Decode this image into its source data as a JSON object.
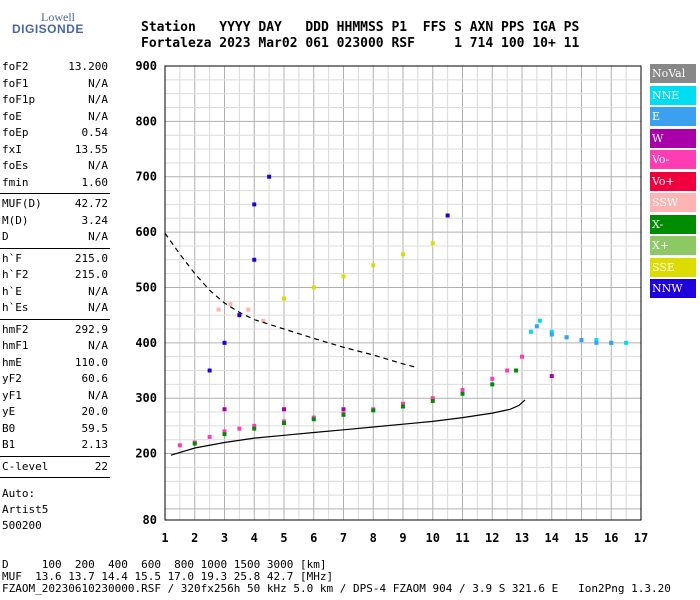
{
  "logo": {
    "line1": "Lowell",
    "line2": "DIGISONDE"
  },
  "header": {
    "line1": "Station   YYYY DAY   DDD HHMMSS P1  FFS S AXN PPS IGA PS",
    "line2": "Fortaleza 2023 Mar02 061 023000 RSF     1 714 100 10+ 11"
  },
  "params": {
    "group1": [
      [
        "foF2",
        "13.200"
      ],
      [
        "foF1",
        "N/A"
      ],
      [
        "foF1p",
        "N/A"
      ],
      [
        "foE",
        "N/A"
      ],
      [
        "foEp",
        "0.54"
      ],
      [
        "fxI",
        "13.55"
      ],
      [
        "foEs",
        "N/A"
      ],
      [
        "fmin",
        "1.60"
      ]
    ],
    "group2": [
      [
        "MUF(D)",
        "42.72"
      ],
      [
        "M(D)",
        "3.24"
      ],
      [
        "D",
        "N/A"
      ]
    ],
    "group3": [
      [
        "h`F",
        "215.0"
      ],
      [
        "h`F2",
        "215.0"
      ],
      [
        "h`E",
        "N/A"
      ],
      [
        "h`Es",
        "N/A"
      ]
    ],
    "group4": [
      [
        "hmF2",
        "292.9"
      ],
      [
        "hmF1",
        "N/A"
      ],
      [
        "hmE",
        "110.0"
      ],
      [
        "yF2",
        "60.6"
      ],
      [
        "yF1",
        "N/A"
      ],
      [
        "yE",
        "20.0"
      ],
      [
        "B0",
        "59.5"
      ],
      [
        "B1",
        "2.13"
      ]
    ],
    "group5": [
      [
        "C-level",
        "22"
      ]
    ],
    "auto_lines": [
      "Auto:",
      "Artist5",
      "500200"
    ]
  },
  "legend": [
    {
      "label": "NoVal",
      "color": "#888888"
    },
    {
      "label": "NNE",
      "color": "#00dcf0"
    },
    {
      "label": "E",
      "color": "#3ca0f0"
    },
    {
      "label": "W",
      "color": "#aa00aa"
    },
    {
      "label": "Vo-",
      "color": "#ff3cb4"
    },
    {
      "label": "Vo+",
      "color": "#f0003c"
    },
    {
      "label": "SSW",
      "color": "#ffb4b4"
    },
    {
      "label": "X-",
      "color": "#008c00"
    },
    {
      "label": "X+",
      "color": "#8cc864"
    },
    {
      "label": "SSE",
      "color": "#dcdc00"
    },
    {
      "label": "NNW",
      "color": "#1e00dc"
    }
  ],
  "footer": {
    "line1": "D     100  200  400  600  800 1000 1500 3000 [km]",
    "line2": "MUF  13.6 13.7 14.4 15.5 17.0 19.3 25.8 42.7 [MHz]",
    "line3": "FZAOM_20230610230000.RSF / 320fx256h 50 kHz 5.0 km / DPS-4 FZAOM 904 / 3.9 S 321.6 E   Ion2Png 1.3.20"
  },
  "chart_data": {
    "type": "scatter",
    "xlim": [
      1,
      17
    ],
    "ylim": [
      80,
      900
    ],
    "xticks": [
      1,
      2,
      3,
      4,
      5,
      6,
      7,
      8,
      9,
      10,
      11,
      12,
      13,
      14,
      15,
      16,
      17
    ],
    "yticks": [
      80,
      200,
      300,
      400,
      500,
      600,
      700,
      800,
      900
    ],
    "grid": true,
    "legend_position": "right",
    "series": [
      {
        "name": "Vo-",
        "values": [
          [
            1.5,
            215
          ],
          [
            2.0,
            220
          ],
          [
            2.5,
            230
          ],
          [
            3.0,
            240
          ],
          [
            3.5,
            245
          ],
          [
            4.0,
            250
          ],
          [
            5.0,
            258
          ],
          [
            6.0,
            265
          ],
          [
            7.0,
            272
          ],
          [
            8.0,
            280
          ],
          [
            9.0,
            290
          ],
          [
            10.0,
            300
          ],
          [
            11.0,
            315
          ],
          [
            12.0,
            335
          ],
          [
            12.5,
            350
          ],
          [
            13.0,
            375
          ]
        ]
      },
      {
        "name": "X-",
        "values": [
          [
            2.0,
            218
          ],
          [
            3.0,
            235
          ],
          [
            4.0,
            245
          ],
          [
            5.0,
            255
          ],
          [
            6.0,
            262
          ],
          [
            7.0,
            270
          ],
          [
            8.0,
            278
          ],
          [
            9.0,
            285
          ],
          [
            10.0,
            295
          ],
          [
            11.0,
            308
          ],
          [
            12.0,
            325
          ],
          [
            12.8,
            350
          ]
        ]
      },
      {
        "name": "NNE",
        "values": [
          [
            13.3,
            420
          ],
          [
            13.6,
            440
          ],
          [
            14.0,
            420
          ],
          [
            14.5,
            410
          ],
          [
            15.0,
            405
          ],
          [
            15.5,
            405
          ],
          [
            16.0,
            400
          ],
          [
            16.5,
            400
          ]
        ]
      },
      {
        "name": "E",
        "values": [
          [
            13.5,
            430
          ],
          [
            14.0,
            415
          ],
          [
            14.5,
            410
          ],
          [
            15.0,
            405
          ],
          [
            15.5,
            400
          ],
          [
            16.0,
            400
          ]
        ]
      },
      {
        "name": "SSE",
        "values": [
          [
            5.0,
            480
          ],
          [
            6.0,
            500
          ],
          [
            7.0,
            520
          ],
          [
            8.0,
            540
          ],
          [
            9.0,
            560
          ],
          [
            10.0,
            580
          ]
        ]
      },
      {
        "name": "NNW",
        "values": [
          [
            2.5,
            350
          ],
          [
            3.0,
            400
          ],
          [
            3.5,
            450
          ],
          [
            4.0,
            550
          ],
          [
            4.0,
            650
          ],
          [
            4.5,
            700
          ],
          [
            10.5,
            630
          ]
        ]
      },
      {
        "name": "SSW",
        "values": [
          [
            2.8,
            460
          ],
          [
            3.2,
            470
          ],
          [
            3.8,
            460
          ],
          [
            4.3,
            440
          ]
        ]
      },
      {
        "name": "W",
        "values": [
          [
            3.0,
            280
          ],
          [
            5.0,
            280
          ],
          [
            7.0,
            280
          ],
          [
            14.0,
            340
          ]
        ]
      }
    ],
    "curves": [
      {
        "name": "profile",
        "style": "solid",
        "values": [
          [
            1.2,
            197
          ],
          [
            2,
            210
          ],
          [
            3,
            220
          ],
          [
            4,
            228
          ],
          [
            5,
            233
          ],
          [
            6,
            238
          ],
          [
            7,
            243
          ],
          [
            8,
            248
          ],
          [
            9,
            253
          ],
          [
            10,
            258
          ],
          [
            11,
            265
          ],
          [
            12,
            273
          ],
          [
            12.6,
            280
          ],
          [
            12.9,
            287
          ],
          [
            13.1,
            297
          ]
        ]
      },
      {
        "name": "muf",
        "style": "dashed",
        "values": [
          [
            1.0,
            598
          ],
          [
            1.5,
            560
          ],
          [
            2.0,
            525
          ],
          [
            2.5,
            495
          ],
          [
            3.0,
            472
          ],
          [
            3.5,
            455
          ],
          [
            4.0,
            442
          ],
          [
            5.0,
            425
          ],
          [
            6.0,
            408
          ],
          [
            7.0,
            392
          ],
          [
            8.0,
            378
          ],
          [
            9.0,
            362
          ],
          [
            9.5,
            355
          ]
        ]
      }
    ]
  }
}
